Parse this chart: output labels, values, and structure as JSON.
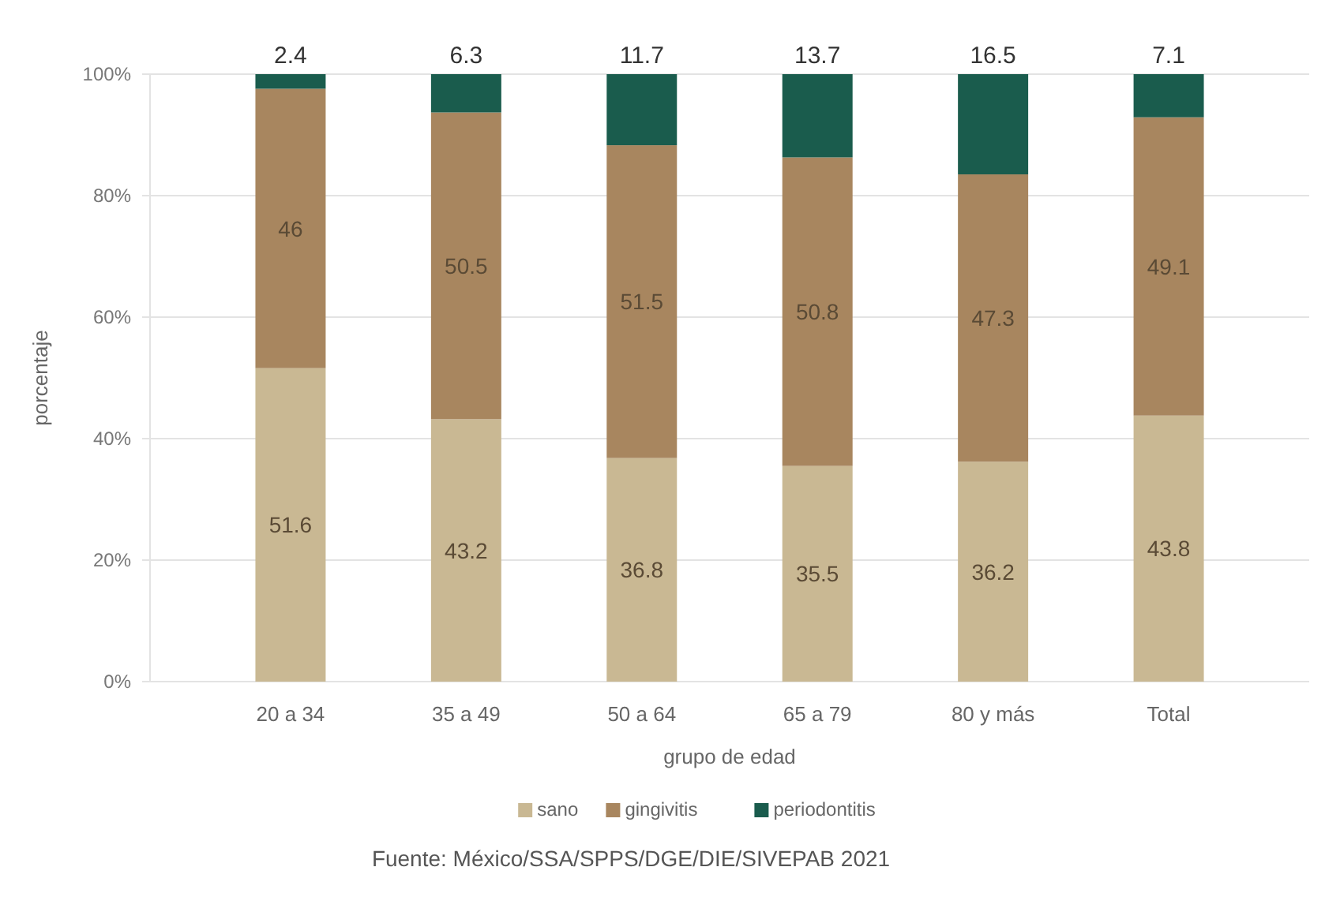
{
  "chart_data": {
    "type": "bar",
    "stacked": true,
    "xlabel": "grupo de edad",
    "ylabel": "porcentaje",
    "categories": [
      "20 a 34",
      "35 a 49",
      "50 a 64",
      "65 a 79",
      "80 y más",
      "Total"
    ],
    "series": [
      {
        "name": "sano",
        "color": "#c9b893",
        "values": [
          51.6,
          43.2,
          36.8,
          35.5,
          36.2,
          43.8
        ]
      },
      {
        "name": "gingivitis",
        "color": "#a8865f",
        "values": [
          46,
          50.5,
          51.5,
          50.8,
          47.3,
          49.1
        ]
      },
      {
        "name": "periodontitis",
        "color": "#1a5c4d",
        "values": [
          2.4,
          6.3,
          11.7,
          13.7,
          16.5,
          7.1
        ]
      }
    ],
    "ylim": [
      0,
      100
    ],
    "yticks": [
      {
        "value": 0,
        "label": "0%"
      },
      {
        "value": 20,
        "label": "20%"
      },
      {
        "value": 40,
        "label": "40%"
      },
      {
        "value": 60,
        "label": "60%"
      },
      {
        "value": 80,
        "label": "80%"
      },
      {
        "value": 100,
        "label": "100%"
      }
    ],
    "grid": "y",
    "data_labels": true,
    "legend": "bottom",
    "annotations": [
      "Fuente: México/SSA/SPPS/DGE/DIE/SIVEPAB 2021"
    ]
  }
}
